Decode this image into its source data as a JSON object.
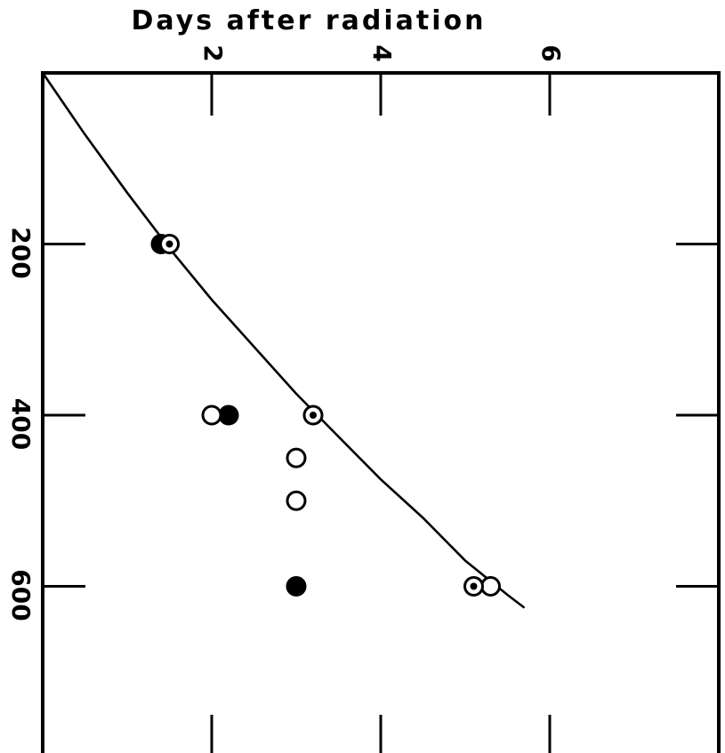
{
  "chart_data": {
    "type": "scatter",
    "title": "",
    "xlabel": "Days after radiation",
    "ylabel": "",
    "xlim": [
      0,
      8
    ],
    "ylim": [
      0,
      800
    ],
    "y_inverted": true,
    "x_axis_position": "top",
    "x_ticks": [
      2,
      4,
      6
    ],
    "x_tick_labels": [
      "2",
      "4",
      "6"
    ],
    "y_ticks": [
      200,
      400,
      600
    ],
    "y_tick_labels": [
      "200",
      "400",
      "600"
    ],
    "grid": false,
    "series": [
      {
        "marker": "filled-circle",
        "points": [
          [
            1.4,
            200
          ],
          [
            2.2,
            400
          ],
          [
            3.0,
            600
          ]
        ]
      },
      {
        "marker": "open-circle",
        "points": [
          [
            2.0,
            400
          ],
          [
            3.0,
            450
          ],
          [
            3.0,
            500
          ],
          [
            5.3,
            600
          ]
        ]
      },
      {
        "marker": "dotted-circle",
        "points": [
          [
            1.5,
            200
          ],
          [
            3.2,
            400
          ],
          [
            5.1,
            600
          ]
        ]
      }
    ],
    "curve": {
      "type": "line",
      "points": [
        [
          0,
          0
        ],
        [
          0.5,
          72
        ],
        [
          1.0,
          140
        ],
        [
          1.5,
          205
        ],
        [
          2.0,
          265
        ],
        [
          2.5,
          320
        ],
        [
          3.0,
          375
        ],
        [
          3.5,
          425
        ],
        [
          4.0,
          475
        ],
        [
          4.5,
          520
        ],
        [
          5.0,
          570
        ],
        [
          5.5,
          610
        ],
        [
          5.7,
          625
        ]
      ]
    }
  }
}
